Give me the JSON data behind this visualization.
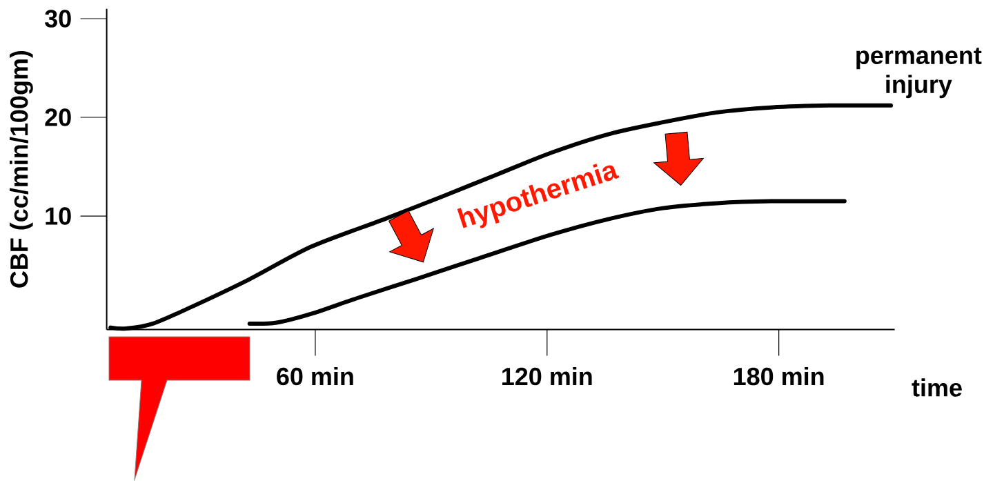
{
  "chart_data": {
    "type": "line",
    "xlabel": "time",
    "ylabel": "CBF (cc/min/100gm)",
    "annotations": [
      "hypothermia",
      "permanent injury"
    ],
    "xlim": [
      6,
      210
    ],
    "ylim": [
      -1.5,
      31
    ],
    "xticks": [
      {
        "value": 60,
        "label": "60 min"
      },
      {
        "value": 120,
        "label": "120 min"
      },
      {
        "value": 180,
        "label": "180 min"
      }
    ],
    "yticks": [
      10,
      20,
      30
    ],
    "series": [
      {
        "color": "#000000",
        "x": [
          7,
          11,
          18,
          28,
          43,
          59,
          78,
          93,
          107,
          121,
          136,
          150,
          164,
          178,
          193,
          209
        ],
        "values": [
          -1.3,
          -1.4,
          -0.9,
          0.8,
          3.6,
          6.9,
          9.7,
          12.0,
          14.2,
          16.4,
          18.3,
          19.5,
          20.5,
          21.0,
          21.2,
          21.2
        ]
      },
      {
        "color": "#000000",
        "x": [
          43,
          50,
          59,
          71,
          86,
          103,
          121,
          136,
          150,
          164,
          178,
          197
        ],
        "values": [
          -0.9,
          -0.8,
          0.1,
          1.7,
          3.6,
          5.8,
          8.1,
          9.7,
          10.8,
          11.3,
          11.5,
          11.5
        ]
      }
    ]
  }
}
